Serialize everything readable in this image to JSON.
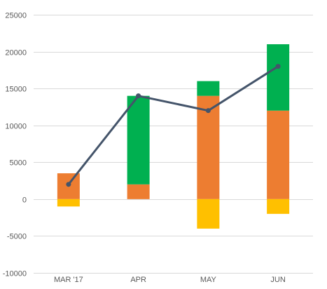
{
  "chart_data": {
    "type": "bar",
    "stacked": true,
    "categories": [
      "MAR '17",
      "APR",
      "MAY",
      "JUN"
    ],
    "series": [
      {
        "type": "bar",
        "color": "#ED7D31",
        "values": [
          3500,
          2000,
          14000,
          12000
        ]
      },
      {
        "type": "bar",
        "color": "#00B050",
        "values": [
          0,
          12000,
          2000,
          9000
        ]
      },
      {
        "type": "bar",
        "color": "#FFC000",
        "values": [
          -1000,
          0,
          -4000,
          -2000
        ]
      },
      {
        "type": "line",
        "color": "#44546A",
        "values": [
          2000,
          14000,
          12000,
          18000
        ]
      }
    ],
    "yticks": [
      25000,
      20000,
      15000,
      10000,
      5000,
      0,
      -5000,
      -10000
    ],
    "ylim": [
      -10000,
      25000
    ],
    "grid": true,
    "legend": "none"
  }
}
